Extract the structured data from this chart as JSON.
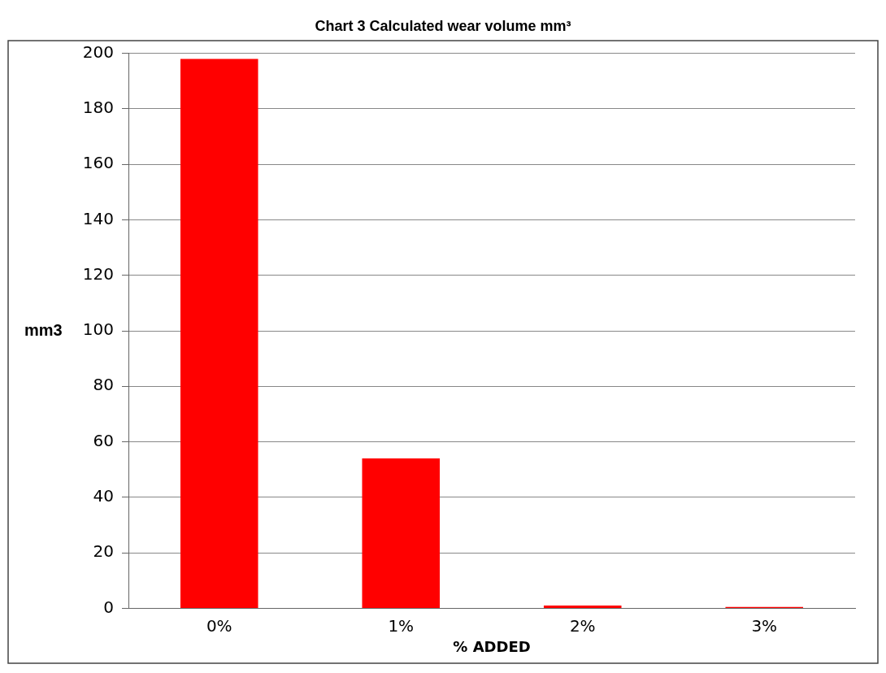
{
  "chart_data": {
    "type": "bar",
    "title": "Chart 3 Calculated wear volume mm³",
    "xlabel": "% ADDED",
    "ylabel": "mm3",
    "categories": [
      "0%",
      "1%",
      "2%",
      "3%"
    ],
    "values": [
      198,
      54,
      1,
      0.5
    ],
    "color": "#ff0000",
    "ylim": [
      0,
      200
    ],
    "yticks": [
      0,
      20,
      40,
      60,
      80,
      100,
      120,
      140,
      160,
      180,
      200
    ],
    "grid": "y"
  }
}
